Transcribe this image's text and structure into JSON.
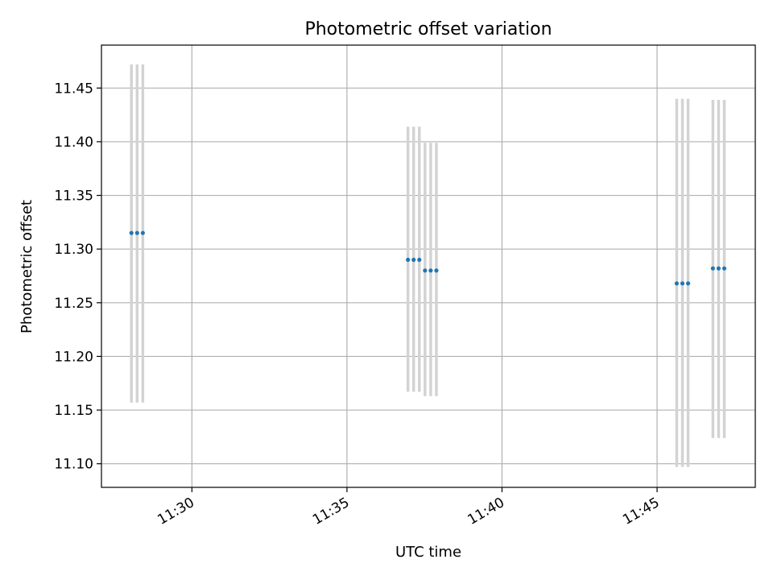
{
  "chart_data": {
    "type": "scatter",
    "title": "Photometric offset variation",
    "xlabel": "UTC time",
    "ylabel": "Photometric offset",
    "grid": true,
    "xlim": [
      "11:27:05",
      "11:48:10"
    ],
    "ylim": [
      11.078,
      11.49
    ],
    "x_ticks": [
      "11:30",
      "11:35",
      "11:40",
      "11:45"
    ],
    "y_ticks": [
      "11.10",
      "11.15",
      "11.20",
      "11.25",
      "11.30",
      "11.35",
      "11.40",
      "11.45"
    ],
    "series": [
      {
        "marker_color": "#1f77b4",
        "errorbar_color": "#d3d3d3",
        "points": [
          {
            "x": "11:28:03",
            "y": 11.315,
            "ylow": 11.157,
            "yhigh": 11.472
          },
          {
            "x": "11:28:14",
            "y": 11.315,
            "ylow": 11.157,
            "yhigh": 11.472
          },
          {
            "x": "11:28:25",
            "y": 11.315,
            "ylow": 11.157,
            "yhigh": 11.472
          },
          {
            "x": "11:36:58",
            "y": 11.29,
            "ylow": 11.167,
            "yhigh": 11.414
          },
          {
            "x": "11:37:09",
            "y": 11.29,
            "ylow": 11.167,
            "yhigh": 11.414
          },
          {
            "x": "11:37:20",
            "y": 11.29,
            "ylow": 11.167,
            "yhigh": 11.414
          },
          {
            "x": "11:37:31",
            "y": 11.28,
            "ylow": 11.163,
            "yhigh": 11.399
          },
          {
            "x": "11:37:42",
            "y": 11.28,
            "ylow": 11.163,
            "yhigh": 11.399
          },
          {
            "x": "11:37:53",
            "y": 11.28,
            "ylow": 11.163,
            "yhigh": 11.399
          },
          {
            "x": "11:45:38",
            "y": 11.268,
            "ylow": 11.097,
            "yhigh": 11.44
          },
          {
            "x": "11:45:49",
            "y": 11.268,
            "ylow": 11.097,
            "yhigh": 11.44
          },
          {
            "x": "11:46:00",
            "y": 11.268,
            "ylow": 11.097,
            "yhigh": 11.44
          },
          {
            "x": "11:46:48",
            "y": 11.282,
            "ylow": 11.124,
            "yhigh": 11.439
          },
          {
            "x": "11:46:59",
            "y": 11.282,
            "ylow": 11.124,
            "yhigh": 11.439
          },
          {
            "x": "11:47:10",
            "y": 11.282,
            "ylow": 11.124,
            "yhigh": 11.439
          }
        ]
      }
    ]
  }
}
